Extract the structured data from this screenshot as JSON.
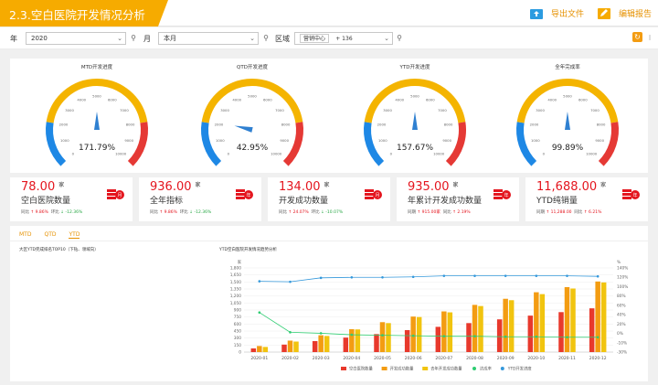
{
  "header": {
    "title": "2.3.空白医院开发情况分析",
    "export_label": "导出文件",
    "edit_label": "编辑报告"
  },
  "filters": {
    "year_label": "年",
    "year_value": "2020",
    "month_label": "月",
    "month_value": "本月",
    "region_label": "区域",
    "region_tag": "营销中心",
    "region_more": "+ 136"
  },
  "gauges": [
    {
      "title": "MTD开发进度",
      "value_text": "171.79%",
      "value": 171.79,
      "ticks": [
        "0",
        "1000",
        "2000",
        "3000",
        "4000",
        "5000",
        "6000",
        "7000",
        "8000",
        "9000",
        "10000"
      ]
    },
    {
      "title": "QTD开发进度",
      "value_text": "42.95%",
      "value": 42.95,
      "ticks": [
        "0",
        "1000",
        "2000",
        "3000",
        "4000",
        "5000",
        "6000",
        "7000",
        "8000",
        "9000",
        "10000"
      ]
    },
    {
      "title": "YTD开发进度",
      "value_text": "157.67%",
      "value": 157.67,
      "ticks": [
        "0",
        "1000",
        "2000",
        "3000",
        "4000",
        "5000",
        "6000",
        "7000",
        "8000",
        "9000",
        "10000"
      ]
    },
    {
      "title": "全年完成率",
      "value_text": "99.89%",
      "value": 99.89,
      "ticks": [
        "0",
        "1000",
        "2000",
        "3000",
        "4000",
        "5000",
        "6000",
        "7000",
        "8000",
        "9000",
        "10000"
      ]
    }
  ],
  "cards": [
    {
      "value": "78.00",
      "unit": "家",
      "label": "空白医院数量",
      "cmp_a_label": "同比",
      "cmp_a": "↑ 9.86%",
      "cmp_b_label": "环比",
      "cmp_b": "↓ -12.36%",
      "badge": "月"
    },
    {
      "value": "936.00",
      "unit": "家",
      "label": "全年指标",
      "cmp_a_label": "同比",
      "cmp_a": "↑ 9.86%",
      "cmp_b_label": "环比",
      "cmp_b": "↓ -12.36%",
      "badge": "年"
    },
    {
      "value": "134.00",
      "unit": "家",
      "label": "开发成功数量",
      "cmp_a_label": "同比",
      "cmp_a": "↑ 24.07%",
      "cmp_b_label": "环比",
      "cmp_b": "↓ -10.07%",
      "badge": "月"
    },
    {
      "value": "935.00",
      "unit": "家",
      "label": "年累计开发成功数量",
      "cmp_a_label": "同期",
      "cmp_a": "↑ 915.00家",
      "cmp_b_label": "同比",
      "cmp_b": "↑ 2.19%",
      "badge": "年"
    },
    {
      "value": "11,688.00",
      "unit": "家",
      "label": "YTD纯销量",
      "cmp_a_label": "同期",
      "cmp_a": "↑ 11,288.00",
      "cmp_b_label": "同比",
      "cmp_b": "↑ 6.21%",
      "badge": "年"
    }
  ],
  "tabs": [
    "MTD",
    "QTD",
    "YTD"
  ],
  "left_subtitle": "大区YTD完成排名TOP10（下钻、领域向）",
  "chart_title": "YTD空白医院开发情况趋势分析",
  "chart_data": {
    "type": "bar",
    "title": "YTD空白医院开发情况趋势分析",
    "categories": [
      "2020-01",
      "2020-02",
      "2020-03",
      "2020-04",
      "2020-05",
      "2020-06",
      "2020-07",
      "2020-08",
      "2020-09",
      "2020-10",
      "2020-11",
      "2020-12"
    ],
    "ylim": [
      0,
      1800
    ],
    "yticks": [
      "0",
      "150",
      "300",
      "450",
      "600",
      "750",
      "900",
      "1,050",
      "1,200",
      "1,350",
      "1,500",
      "1,650",
      "1,800"
    ],
    "y2lim": [
      -30,
      140
    ],
    "y2ticks": [
      "-30%",
      "-10%",
      "0%",
      "20%",
      "40%",
      "60%",
      "80%",
      "100%",
      "120%",
      "140%"
    ],
    "y2_unit": "%",
    "y_unit": "家",
    "series": [
      {
        "name": "空白医院数量",
        "type": "bar",
        "color": "#e8392c",
        "values": [
          78,
          160,
          235,
          310,
          385,
          470,
          540,
          620,
          700,
          780,
          855,
          936
        ]
      },
      {
        "name": "开发成功数量",
        "type": "bar",
        "color": "#f39c12",
        "values": [
          130,
          245,
          360,
          490,
          640,
          760,
          870,
          1010,
          1140,
          1280,
          1390,
          1510
        ]
      },
      {
        "name": "去年开发成功数量",
        "type": "bar",
        "color": "#f1c40f",
        "values": [
          110,
          225,
          345,
          485,
          620,
          750,
          850,
          985,
          1110,
          1240,
          1360,
          1490
        ]
      },
      {
        "name": "达成率",
        "type": "line",
        "axis": "right",
        "color": "#2ecc71",
        "values": [
          50,
          10,
          8,
          5,
          4,
          3,
          2,
          2,
          1,
          1,
          0,
          0
        ]
      },
      {
        "name": "YTD开发进度",
        "type": "line",
        "axis": "right",
        "color": "#3498db",
        "values": [
          113,
          112,
          120,
          121,
          121,
          122,
          124,
          124,
          124,
          124,
          124,
          123
        ]
      }
    ]
  }
}
